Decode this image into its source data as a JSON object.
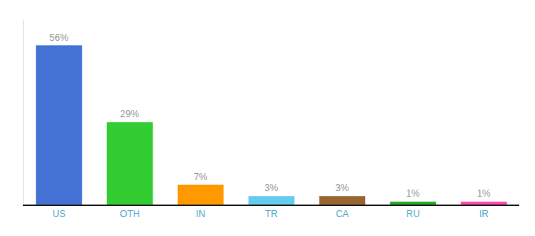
{
  "chart_data": {
    "type": "bar",
    "categories": [
      "US",
      "OTH",
      "IN",
      "TR",
      "CA",
      "RU",
      "IR"
    ],
    "values": [
      56,
      29,
      7,
      3,
      3,
      1,
      1
    ],
    "value_labels": [
      "56%",
      "29%",
      "7%",
      "3%",
      "3%",
      "1%",
      "1%"
    ],
    "data_labels": true,
    "colors": [
      "#4472d4",
      "#33cc33",
      "#ff9900",
      "#66ccee",
      "#996633",
      "#22aa22",
      "#ff44aa"
    ],
    "ylim": [
      0,
      65
    ],
    "grid": false,
    "tick_labels": "x"
  }
}
